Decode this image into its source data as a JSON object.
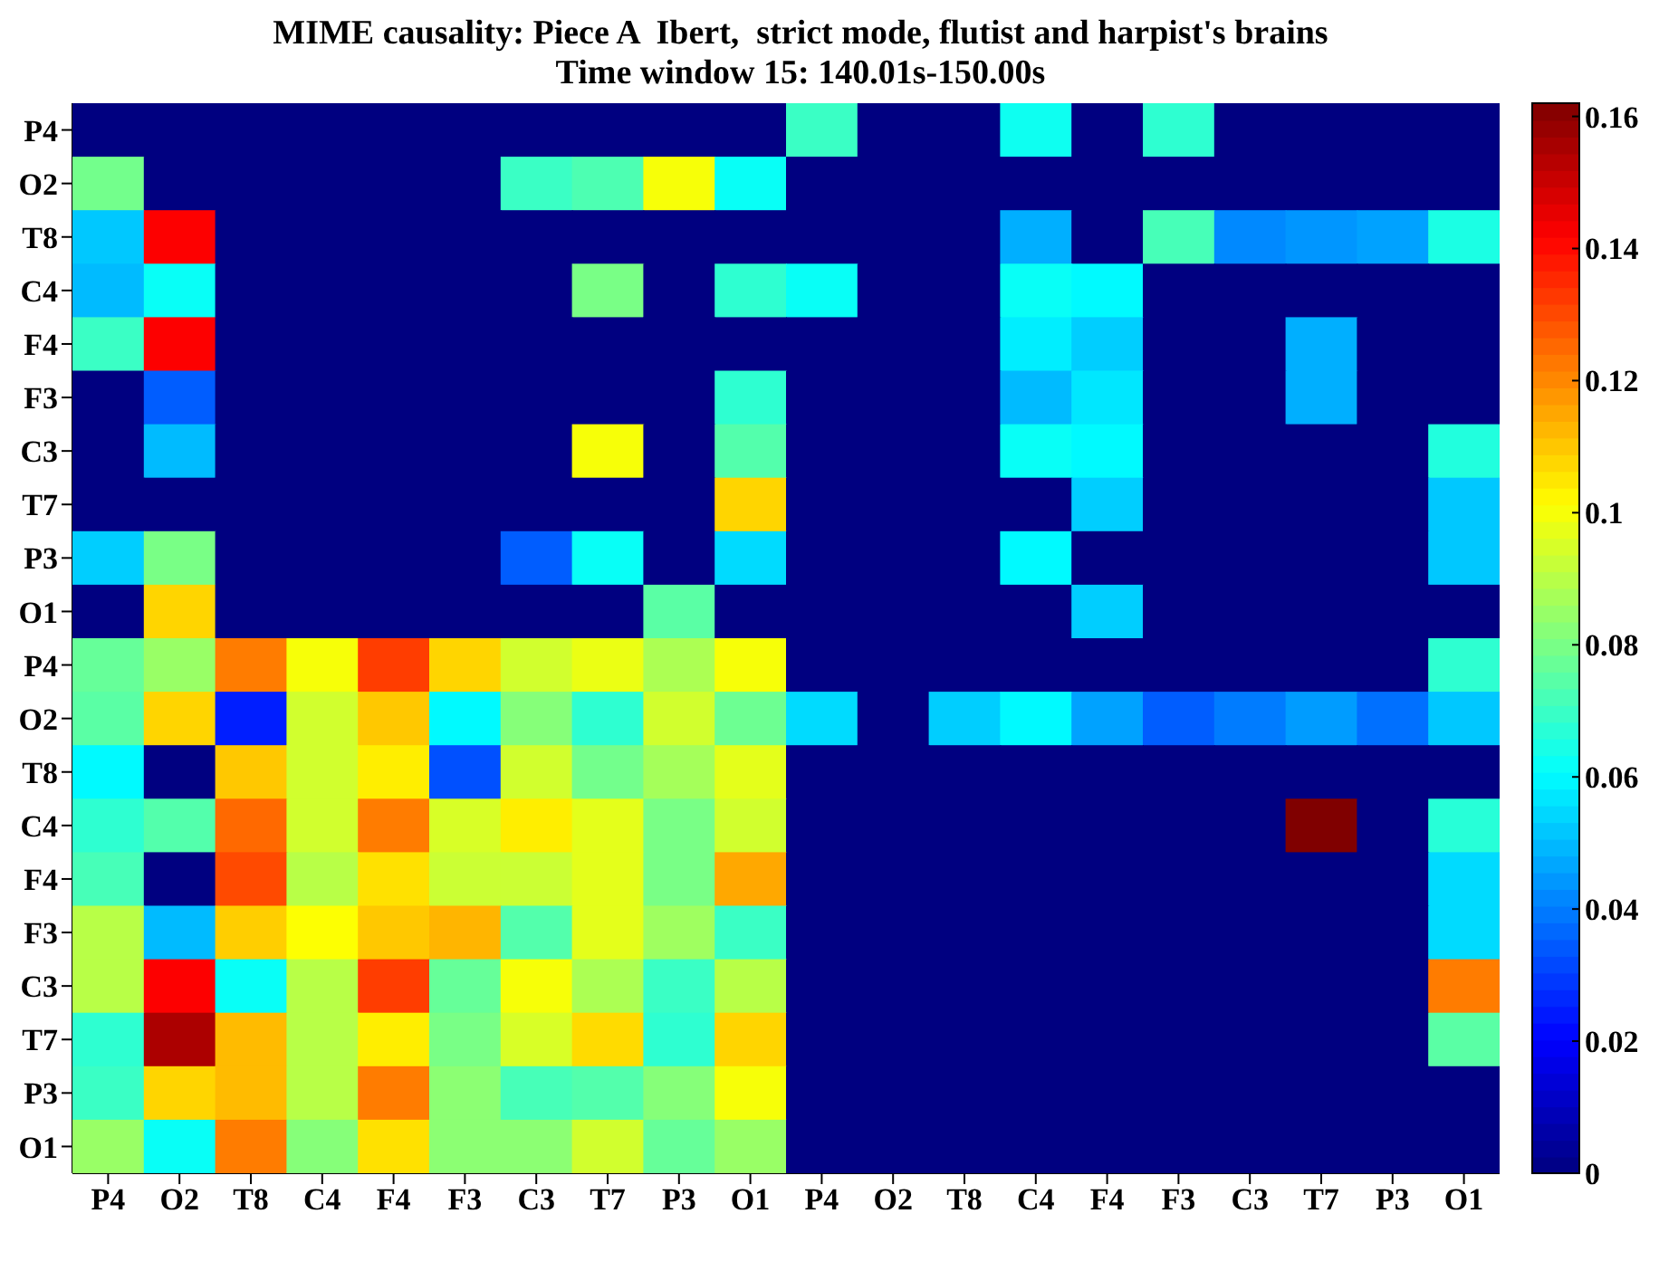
{
  "chart_data": {
    "type": "heatmap",
    "title": "MIME causality: Piece A  Ibert,  strict mode, flutist and harpist's brains",
    "subtitle": "Time window 15: 140.01s-150.00s",
    "categories": [
      "P4",
      "O2",
      "T8",
      "C4",
      "F4",
      "F3",
      "C3",
      "T7",
      "P3",
      "O1",
      "P4",
      "O2",
      "T8",
      "C4",
      "F4",
      "F3",
      "C3",
      "T7",
      "P3",
      "O1"
    ],
    "y_categories": [
      "P4",
      "O2",
      "T8",
      "C4",
      "F4",
      "F3",
      "C3",
      "T7",
      "P3",
      "O1",
      "P4",
      "O2",
      "T8",
      "C4",
      "F4",
      "F3",
      "C3",
      "T7",
      "P3",
      "O1"
    ],
    "cells": [
      [
        0,
        0,
        0,
        0,
        0,
        0,
        0,
        0,
        0,
        0,
        0.07,
        0,
        0,
        0.063,
        0,
        0.068,
        0,
        0,
        0,
        0
      ],
      [
        0.079,
        0,
        0,
        0,
        0,
        0,
        0.07,
        0.073,
        0.1,
        0.062,
        0,
        0,
        0,
        0,
        0,
        0,
        0,
        0,
        0,
        0
      ],
      [
        0.052,
        0.142,
        0,
        0,
        0,
        0,
        0,
        0,
        0,
        0,
        0,
        0,
        0,
        0.048,
        0,
        0.072,
        0.042,
        0.044,
        0.046,
        0.065
      ],
      [
        0.05,
        0.062,
        0,
        0,
        0,
        0,
        0,
        0.08,
        0,
        0.068,
        0.062,
        0,
        0,
        0.062,
        0.06,
        0,
        0,
        0,
        0,
        0
      ],
      [
        0.07,
        0.142,
        0,
        0,
        0,
        0,
        0,
        0,
        0,
        0,
        0,
        0,
        0,
        0.058,
        0.053,
        0,
        0,
        0.048,
        0,
        0
      ],
      [
        0,
        0.035,
        0,
        0,
        0,
        0,
        0,
        0,
        0,
        0.068,
        0,
        0,
        0,
        0.05,
        0.057,
        0,
        0,
        0.048,
        0,
        0
      ],
      [
        0,
        0.05,
        0,
        0,
        0,
        0,
        0,
        0.1,
        0,
        0.074,
        0,
        0,
        0,
        0.062,
        0.06,
        0,
        0,
        0,
        0,
        0.066
      ],
      [
        0,
        0,
        0,
        0,
        0,
        0,
        0,
        0,
        0,
        0.108,
        0,
        0,
        0,
        0,
        0.053,
        0,
        0,
        0,
        0,
        0.052
      ],
      [
        0.053,
        0.08,
        0,
        0,
        0,
        0,
        0.035,
        0.062,
        0,
        0.055,
        0,
        0,
        0,
        0.06,
        0,
        0,
        0,
        0,
        0,
        0.052
      ],
      [
        0,
        0.108,
        0,
        0,
        0,
        0,
        0,
        0,
        0.075,
        0,
        0,
        0,
        0,
        0,
        0.053,
        0,
        0,
        0,
        0,
        0
      ],
      [
        0.077,
        0.085,
        0.122,
        0.1,
        0.132,
        0.108,
        0.094,
        0.098,
        0.088,
        0.1,
        0,
        0,
        0,
        0,
        0,
        0,
        0,
        0,
        0,
        0.068
      ],
      [
        0.075,
        0.108,
        0.025,
        0.094,
        0.11,
        0.06,
        0.082,
        0.068,
        0.094,
        0.078,
        0.055,
        0,
        0.053,
        0.06,
        0.046,
        0.035,
        0.04,
        0.045,
        0.038,
        0.052
      ],
      [
        0.06,
        0,
        0.11,
        0.094,
        0.104,
        0.033,
        0.094,
        0.079,
        0.087,
        0.097,
        0,
        0,
        0,
        0,
        0,
        0,
        0,
        0,
        0,
        0
      ],
      [
        0.068,
        0.074,
        0.125,
        0.094,
        0.122,
        0.095,
        0.104,
        0.097,
        0.08,
        0.094,
        0,
        0,
        0,
        0,
        0,
        0,
        0,
        0.162,
        0,
        0.067
      ],
      [
        0.072,
        0,
        0.13,
        0.09,
        0.106,
        0.093,
        0.093,
        0.097,
        0.08,
        0.115,
        0,
        0,
        0,
        0,
        0,
        0,
        0,
        0,
        0,
        0.055
      ],
      [
        0.09,
        0.05,
        0.109,
        0.101,
        0.11,
        0.113,
        0.074,
        0.097,
        0.086,
        0.07,
        0,
        0,
        0,
        0,
        0,
        0,
        0,
        0,
        0,
        0.055
      ],
      [
        0.09,
        0.142,
        0.062,
        0.09,
        0.132,
        0.077,
        0.1,
        0.088,
        0.07,
        0.09,
        0,
        0,
        0,
        0,
        0,
        0,
        0,
        0,
        0,
        0.122
      ],
      [
        0.068,
        0.155,
        0.112,
        0.09,
        0.104,
        0.08,
        0.095,
        0.107,
        0.068,
        0.108,
        0,
        0,
        0,
        0,
        0,
        0,
        0,
        0,
        0,
        0.075
      ],
      [
        0.07,
        0.108,
        0.112,
        0.09,
        0.122,
        0.083,
        0.072,
        0.074,
        0.082,
        0.1,
        0,
        0,
        0,
        0,
        0,
        0,
        0,
        0,
        0,
        0
      ],
      [
        0.085,
        0.062,
        0.122,
        0.082,
        0.106,
        0.083,
        0.083,
        0.094,
        0.077,
        0.085,
        0,
        0,
        0,
        0,
        0,
        0,
        0,
        0,
        0,
        0
      ]
    ],
    "clim": [
      0,
      0.162
    ],
    "cticks": [
      0,
      0.02,
      0.04,
      0.06,
      0.08,
      0.1,
      0.12,
      0.14,
      0.16
    ]
  }
}
